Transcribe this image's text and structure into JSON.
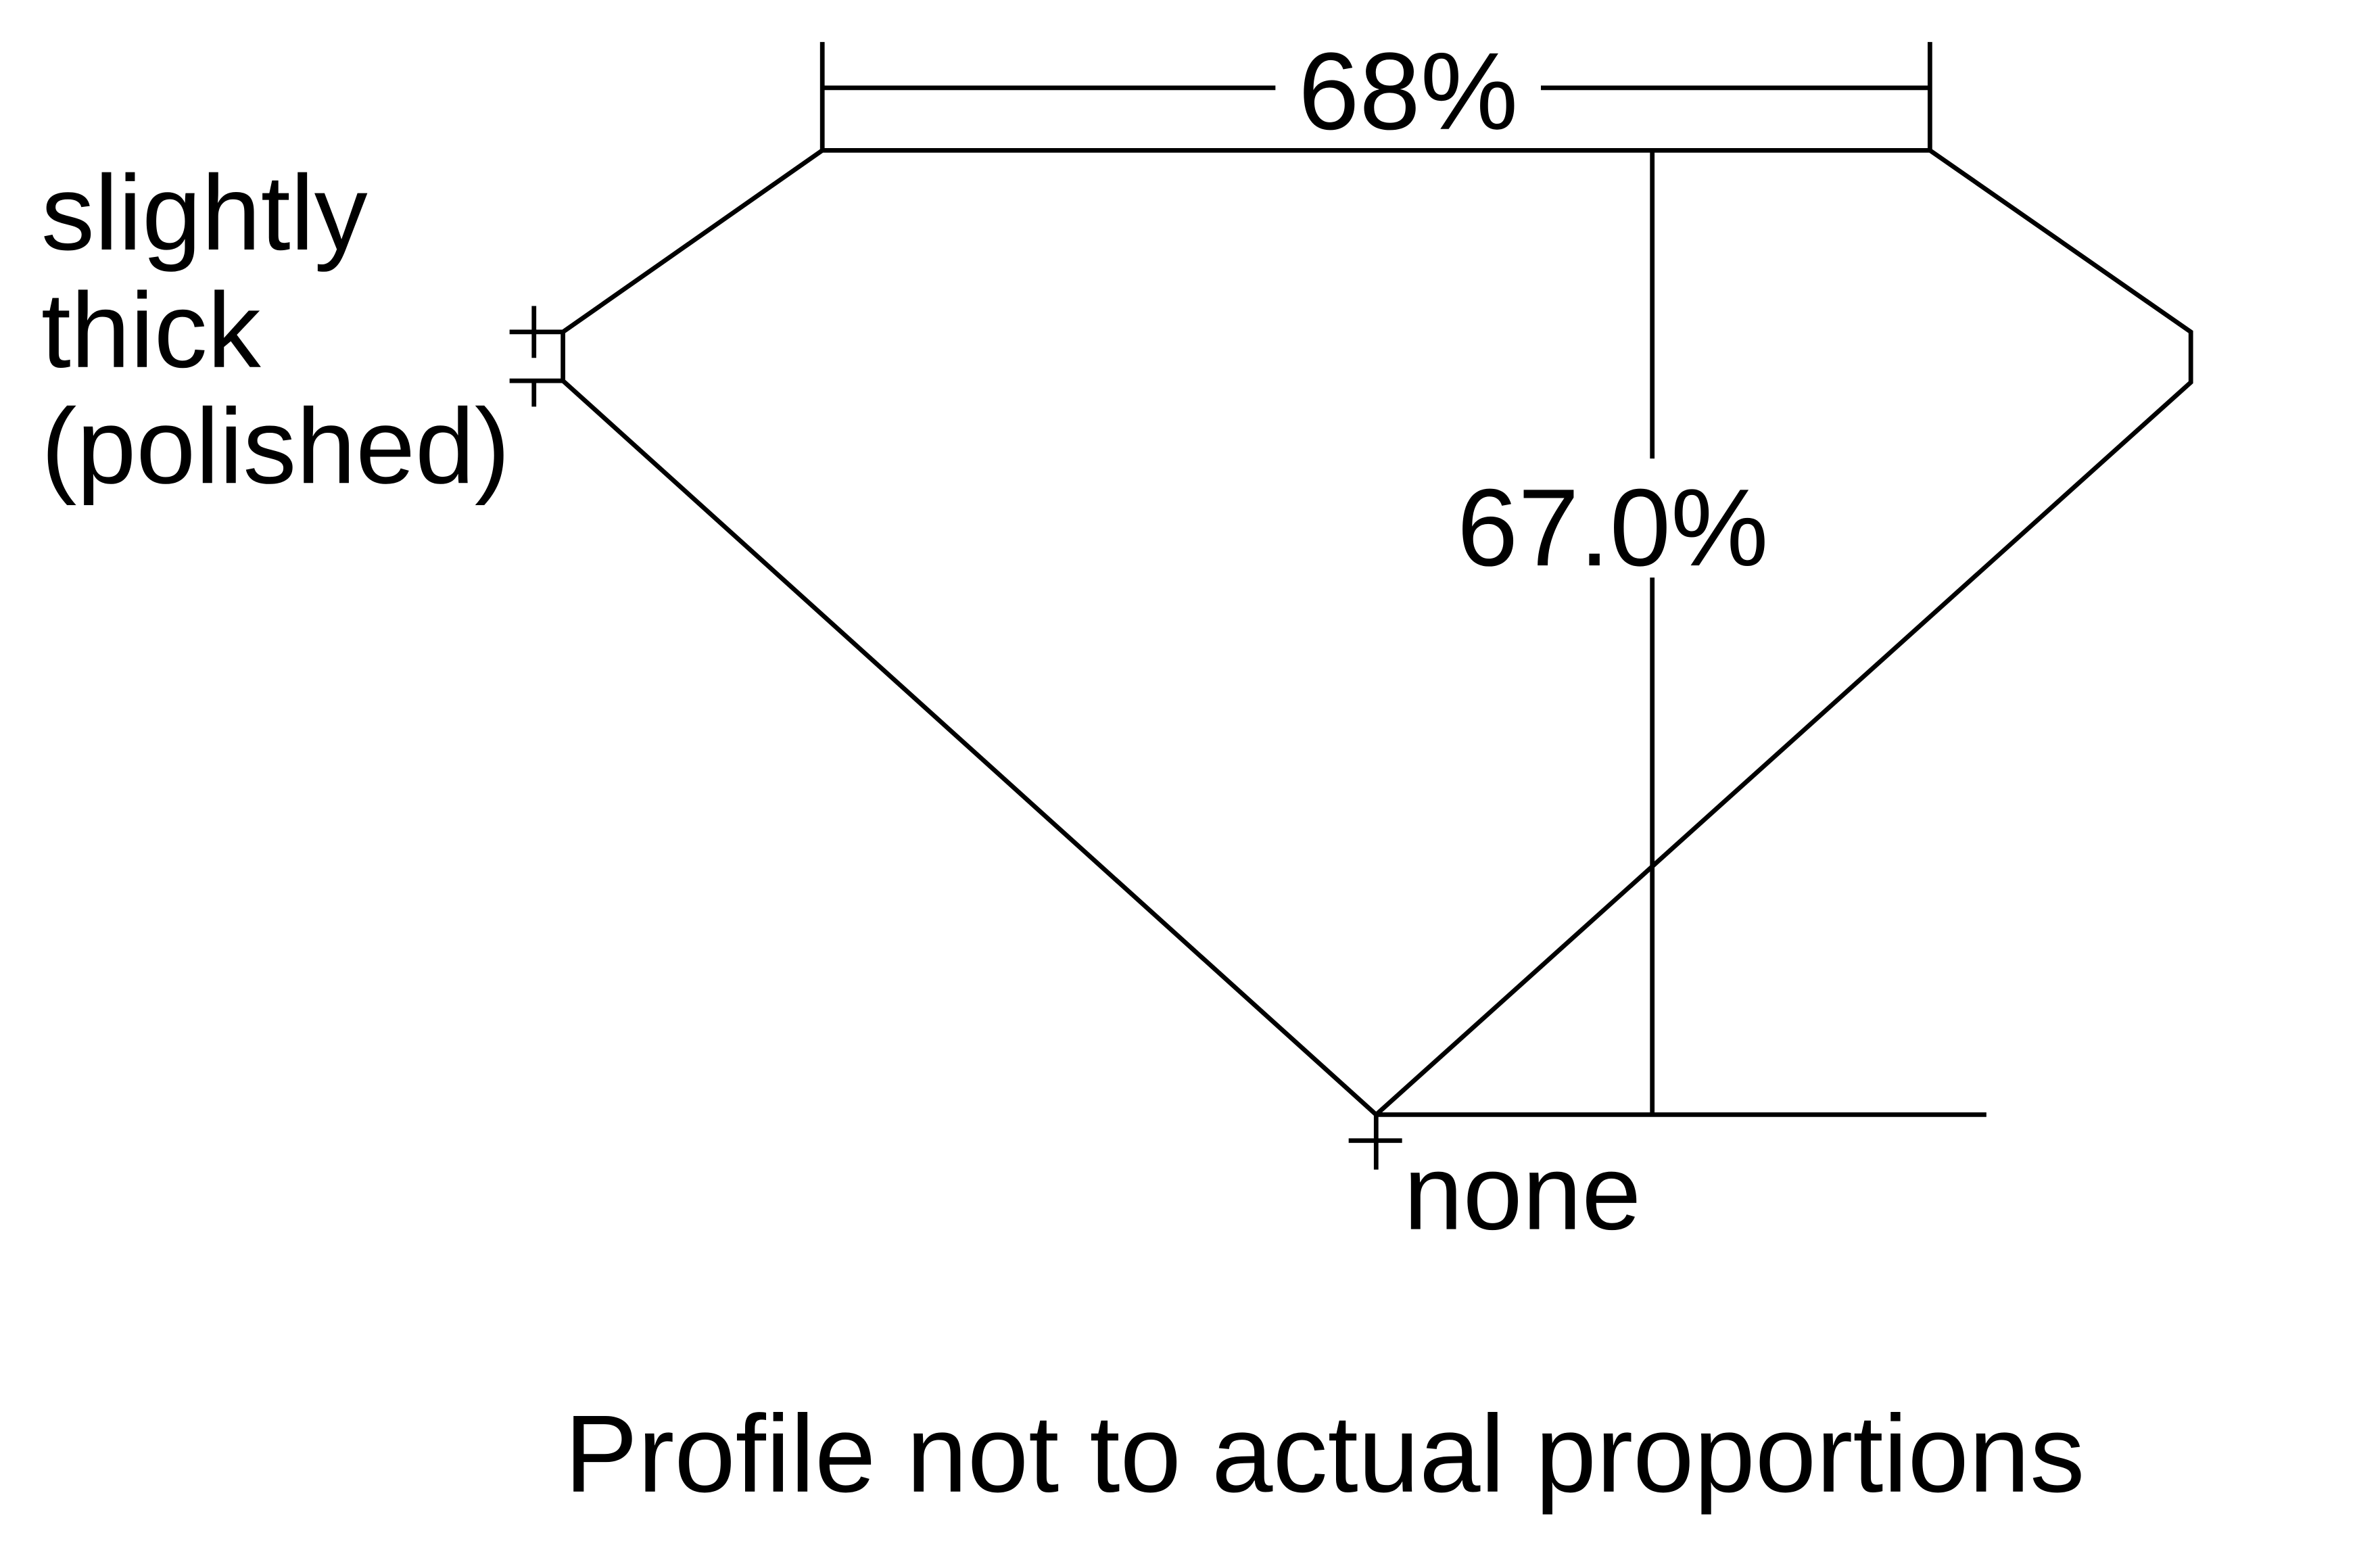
{
  "diagram": {
    "table_percentage": "68%",
    "total_depth": "67.0%",
    "girdle_label_lines": [
      "slightly",
      "thick",
      "(polished)"
    ],
    "culet_label": "none",
    "footnote": "Profile not to actual proportions",
    "line_color": "#000000",
    "background_color": "#ffffff"
  }
}
